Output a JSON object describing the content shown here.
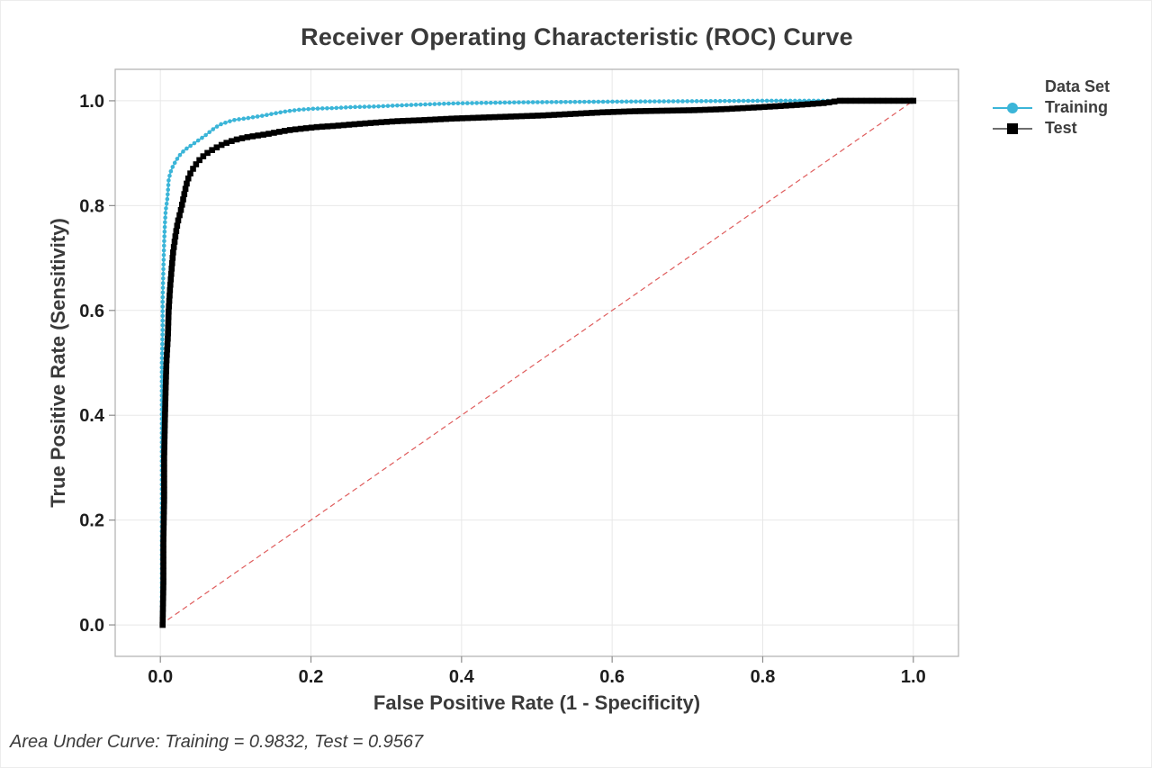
{
  "chart_data": {
    "type": "line",
    "title": "Receiver Operating Characteristic (ROC) Curve",
    "xlabel": "False Positive Rate (1 - Specificity)",
    "ylabel": "True Positive Rate (Sensitivity)",
    "xlim": [
      -0.06,
      1.06
    ],
    "ylim": [
      -0.06,
      1.06
    ],
    "grid": true,
    "xticks": {
      "values": [
        0.0,
        0.2,
        0.4,
        0.6,
        0.8,
        1.0
      ],
      "labels": [
        "0.0",
        "0.2",
        "0.4",
        "0.6",
        "0.8",
        "1.0"
      ]
    },
    "yticks": {
      "values": [
        0.0,
        0.2,
        0.4,
        0.6,
        0.8,
        1.0
      ],
      "labels": [
        "0.0",
        "0.2",
        "0.4",
        "0.6",
        "0.8",
        "1.0"
      ]
    },
    "legend": {
      "title": "Data Set",
      "position": "right-top"
    },
    "reference_line": {
      "name": "chance-diagonal",
      "x": [
        0,
        1
      ],
      "y": [
        0,
        1
      ],
      "color": "#df5c5c",
      "dashed": true
    },
    "footnote": "Area Under Curve: Training = 0.9832, Test = 0.9567",
    "auc": {
      "training": 0.9832,
      "test": 0.9567
    },
    "colors": {
      "training": "#3bb5d8",
      "test": "#000000",
      "test_line": "#6e6e6e",
      "grid": "#e8e8e8",
      "frame": "#b5b5b5",
      "tick": "#8c8c8c"
    },
    "series": [
      {
        "name": "Training",
        "marker": "circle",
        "color": "#3bb5d8",
        "line_color": "#3bb5d8",
        "auc": 0.9832,
        "points": [
          [
            0.002,
            0.0
          ],
          [
            0.002,
            0.05
          ],
          [
            0.002,
            0.1
          ],
          [
            0.002,
            0.15
          ],
          [
            0.002,
            0.2
          ],
          [
            0.002,
            0.25
          ],
          [
            0.002,
            0.3
          ],
          [
            0.002,
            0.35
          ],
          [
            0.002,
            0.4
          ],
          [
            0.002,
            0.45
          ],
          [
            0.002,
            0.5
          ],
          [
            0.003,
            0.56
          ],
          [
            0.003,
            0.62
          ],
          [
            0.004,
            0.68
          ],
          [
            0.005,
            0.73
          ],
          [
            0.006,
            0.765
          ],
          [
            0.007,
            0.79
          ],
          [
            0.009,
            0.81
          ],
          [
            0.01,
            0.826
          ],
          [
            0.011,
            0.848
          ],
          [
            0.013,
            0.862
          ],
          [
            0.016,
            0.873
          ],
          [
            0.02,
            0.884
          ],
          [
            0.024,
            0.893
          ],
          [
            0.028,
            0.9
          ],
          [
            0.033,
            0.907
          ],
          [
            0.039,
            0.913
          ],
          [
            0.046,
            0.92
          ],
          [
            0.052,
            0.926
          ],
          [
            0.058,
            0.932
          ],
          [
            0.065,
            0.94
          ],
          [
            0.072,
            0.948
          ],
          [
            0.08,
            0.955
          ],
          [
            0.09,
            0.96
          ],
          [
            0.1,
            0.964
          ],
          [
            0.112,
            0.966
          ],
          [
            0.125,
            0.969
          ],
          [
            0.138,
            0.972
          ],
          [
            0.152,
            0.976
          ],
          [
            0.168,
            0.98
          ],
          [
            0.185,
            0.983
          ],
          [
            0.205,
            0.985
          ],
          [
            0.23,
            0.986
          ],
          [
            0.255,
            0.988
          ],
          [
            0.285,
            0.989
          ],
          [
            0.315,
            0.991
          ],
          [
            0.35,
            0.993
          ],
          [
            0.39,
            0.995
          ],
          [
            0.43,
            0.996
          ],
          [
            0.475,
            0.997
          ],
          [
            0.52,
            0.9975
          ],
          [
            0.57,
            0.998
          ],
          [
            0.625,
            0.9985
          ],
          [
            0.68,
            0.999
          ],
          [
            0.74,
            0.9995
          ],
          [
            0.8,
            1.0
          ],
          [
            0.87,
            1.0
          ],
          [
            0.935,
            1.0
          ],
          [
            1.0,
            1.0
          ]
        ]
      },
      {
        "name": "Test",
        "marker": "square",
        "color": "#000000",
        "line_color": "#6e6e6e",
        "auc": 0.9567,
        "points": [
          [
            0.003,
            0.0
          ],
          [
            0.004,
            0.08
          ],
          [
            0.004,
            0.16
          ],
          [
            0.005,
            0.24
          ],
          [
            0.005,
            0.32
          ],
          [
            0.006,
            0.39
          ],
          [
            0.007,
            0.45
          ],
          [
            0.008,
            0.5
          ],
          [
            0.01,
            0.55
          ],
          [
            0.011,
            0.6
          ],
          [
            0.013,
            0.645
          ],
          [
            0.015,
            0.68
          ],
          [
            0.017,
            0.712
          ],
          [
            0.02,
            0.742
          ],
          [
            0.023,
            0.768
          ],
          [
            0.027,
            0.79
          ],
          [
            0.03,
            0.81
          ],
          [
            0.033,
            0.83
          ],
          [
            0.036,
            0.848
          ],
          [
            0.04,
            0.862
          ],
          [
            0.045,
            0.874
          ],
          [
            0.05,
            0.884
          ],
          [
            0.056,
            0.893
          ],
          [
            0.063,
            0.901
          ],
          [
            0.071,
            0.908
          ],
          [
            0.08,
            0.915
          ],
          [
            0.09,
            0.921
          ],
          [
            0.101,
            0.926
          ],
          [
            0.113,
            0.93
          ],
          [
            0.126,
            0.933
          ],
          [
            0.14,
            0.936
          ],
          [
            0.155,
            0.94
          ],
          [
            0.171,
            0.944
          ],
          [
            0.189,
            0.947
          ],
          [
            0.209,
            0.95
          ],
          [
            0.231,
            0.952
          ],
          [
            0.256,
            0.955
          ],
          [
            0.283,
            0.958
          ],
          [
            0.313,
            0.961
          ],
          [
            0.348,
            0.963
          ],
          [
            0.388,
            0.966
          ],
          [
            0.428,
            0.968
          ],
          [
            0.468,
            0.97
          ],
          [
            0.508,
            0.972
          ],
          [
            0.548,
            0.975
          ],
          [
            0.588,
            0.978
          ],
          [
            0.628,
            0.98
          ],
          [
            0.668,
            0.981
          ],
          [
            0.708,
            0.982
          ],
          [
            0.748,
            0.984
          ],
          [
            0.788,
            0.987
          ],
          [
            0.823,
            0.99
          ],
          [
            0.856,
            0.993
          ],
          [
            0.884,
            0.996
          ],
          [
            0.902,
            1.0
          ],
          [
            0.95,
            1.0
          ],
          [
            1.0,
            1.0
          ]
        ]
      }
    ]
  }
}
